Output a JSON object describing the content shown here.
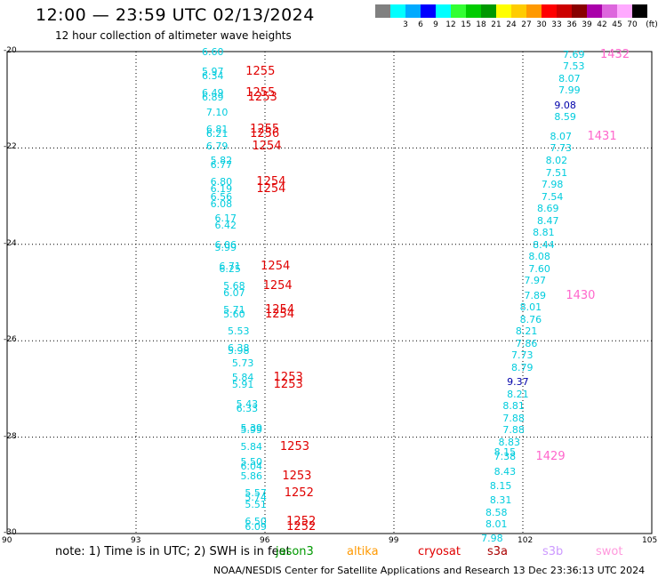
{
  "header": {
    "title": "12:00 — 23:59 UTC 02/13/2024",
    "subtitle": "12 hour collection of altimeter wave heights"
  },
  "color_scale": {
    "unit": "(ft)",
    "colors": [
      "#808080",
      "#00ffff",
      "#00aaff",
      "#0000ff",
      "#00ffff",
      "#33ff33",
      "#00cc00",
      "#009900",
      "#ffff00",
      "#ffcc00",
      "#ff9900",
      "#ff0000",
      "#cc0000",
      "#880000",
      "#aa00aa",
      "#dd66dd",
      "#ffaaff",
      "#000000"
    ],
    "labels": [
      "3",
      "6",
      "9",
      "12",
      "15",
      "18",
      "21",
      "24",
      "27",
      "30",
      "33",
      "36",
      "39",
      "42",
      "45",
      "70"
    ]
  },
  "axes": {
    "y_ticks": [
      "-20",
      "-22",
      "-24",
      "-26",
      "-28",
      "-30"
    ],
    "x_ticks": [
      "90",
      "93",
      "96",
      "99",
      "102",
      "105"
    ]
  },
  "track_left": [
    {
      "v": "6.60",
      "lat": -20.0,
      "lon": 94.8
    },
    {
      "v": "5.97",
      "lat": -20.4,
      "lon": 94.8
    },
    {
      "v": "6.34",
      "lat": -20.5,
      "lon": 94.8
    },
    {
      "v": "6.49",
      "lat": -20.85,
      "lon": 94.8
    },
    {
      "v": "6.89",
      "lat": -20.95,
      "lon": 94.8
    },
    {
      "v": "7.10",
      "lat": -21.25,
      "lon": 94.9
    },
    {
      "v": "6.81",
      "lat": -21.6,
      "lon": 94.9
    },
    {
      "v": "6.21",
      "lat": -21.7,
      "lon": 94.9
    },
    {
      "v": "6.79",
      "lat": -21.95,
      "lon": 94.9
    },
    {
      "v": "5.82",
      "lat": -22.25,
      "lon": 95.0
    },
    {
      "v": "6.77",
      "lat": -22.35,
      "lon": 95.0
    },
    {
      "v": "6.80",
      "lat": -22.7,
      "lon": 95.0
    },
    {
      "v": "6.19",
      "lat": -22.85,
      "lon": 95.0
    },
    {
      "v": "6.56",
      "lat": -23.0,
      "lon": 95.0
    },
    {
      "v": "6.08",
      "lat": -23.15,
      "lon": 95.0
    },
    {
      "v": "6.17",
      "lat": -23.45,
      "lon": 95.1
    },
    {
      "v": "6.42",
      "lat": -23.6,
      "lon": 95.1
    },
    {
      "v": "6.06",
      "lat": -24.0,
      "lon": 95.1
    },
    {
      "v": "5.99",
      "lat": -24.05,
      "lon": 95.1
    },
    {
      "v": "6.71",
      "lat": -24.45,
      "lon": 95.2
    },
    {
      "v": "6.25",
      "lat": -24.5,
      "lon": 95.2
    },
    {
      "v": "5.68",
      "lat": -24.85,
      "lon": 95.3
    },
    {
      "v": "6.07",
      "lat": -25.0,
      "lon": 95.3
    },
    {
      "v": "5.71",
      "lat": -25.35,
      "lon": 95.3
    },
    {
      "v": "5.60",
      "lat": -25.45,
      "lon": 95.3
    },
    {
      "v": "5.53",
      "lat": -25.8,
      "lon": 95.4
    },
    {
      "v": "6.38",
      "lat": -26.15,
      "lon": 95.4
    },
    {
      "v": "5.98",
      "lat": -26.2,
      "lon": 95.4
    },
    {
      "v": "5.73",
      "lat": -26.45,
      "lon": 95.5
    },
    {
      "v": "5.84",
      "lat": -26.75,
      "lon": 95.5
    },
    {
      "v": "5.91",
      "lat": -26.9,
      "lon": 95.5
    },
    {
      "v": "5.43",
      "lat": -27.3,
      "lon": 95.6
    },
    {
      "v": "6.33",
      "lat": -27.4,
      "lon": 95.6
    },
    {
      "v": "5.39",
      "lat": -27.8,
      "lon": 95.7
    },
    {
      "v": "5.99",
      "lat": -27.85,
      "lon": 95.7
    },
    {
      "v": "5.84",
      "lat": -28.2,
      "lon": 95.7
    },
    {
      "v": "5.50",
      "lat": -28.5,
      "lon": 95.7
    },
    {
      "v": "6.04",
      "lat": -28.6,
      "lon": 95.7
    },
    {
      "v": "5.86",
      "lat": -28.8,
      "lon": 95.7
    },
    {
      "v": "5.57",
      "lat": -29.15,
      "lon": 95.8
    },
    {
      "v": "5.74",
      "lat": -29.25,
      "lon": 95.8
    },
    {
      "v": "5.51",
      "lat": -29.4,
      "lon": 95.8
    },
    {
      "v": "6.50",
      "lat": -29.75,
      "lon": 95.8
    },
    {
      "v": "6.09",
      "lat": -29.85,
      "lon": 95.8
    }
  ],
  "track_right": [
    {
      "v": "7.69",
      "lat": -20.05,
      "lon": 103.2,
      "dark": false
    },
    {
      "v": "7.53",
      "lat": -20.3,
      "lon": 103.2,
      "dark": false
    },
    {
      "v": "8.07",
      "lat": -20.55,
      "lon": 103.1,
      "dark": false
    },
    {
      "v": "7.99",
      "lat": -20.8,
      "lon": 103.1,
      "dark": false
    },
    {
      "v": "9.08",
      "lat": -21.1,
      "lon": 103.0,
      "dark": true
    },
    {
      "v": "8.59",
      "lat": -21.35,
      "lon": 103.0,
      "dark": false
    },
    {
      "v": "8.07",
      "lat": -21.75,
      "lon": 102.9,
      "dark": false
    },
    {
      "v": "7.73",
      "lat": -22.0,
      "lon": 102.9,
      "dark": false
    },
    {
      "v": "8.02",
      "lat": -22.25,
      "lon": 102.8,
      "dark": false
    },
    {
      "v": "7.51",
      "lat": -22.5,
      "lon": 102.8,
      "dark": false
    },
    {
      "v": "7.98",
      "lat": -22.75,
      "lon": 102.7,
      "dark": false
    },
    {
      "v": "7.54",
      "lat": -23.0,
      "lon": 102.7,
      "dark": false
    },
    {
      "v": "8.69",
      "lat": -23.25,
      "lon": 102.6,
      "dark": false
    },
    {
      "v": "8.47",
      "lat": -23.5,
      "lon": 102.6,
      "dark": false
    },
    {
      "v": "8.81",
      "lat": -23.75,
      "lon": 102.5,
      "dark": false
    },
    {
      "v": "8.44",
      "lat": -24.0,
      "lon": 102.5,
      "dark": false
    },
    {
      "v": "8.08",
      "lat": -24.25,
      "lon": 102.4,
      "dark": false
    },
    {
      "v": "7.60",
      "lat": -24.5,
      "lon": 102.4,
      "dark": false
    },
    {
      "v": "7.97",
      "lat": -24.75,
      "lon": 102.3,
      "dark": false
    },
    {
      "v": "7.89",
      "lat": -25.05,
      "lon": 102.3,
      "dark": false
    },
    {
      "v": "8.01",
      "lat": -25.3,
      "lon": 102.2,
      "dark": false
    },
    {
      "v": "8.76",
      "lat": -25.55,
      "lon": 102.2,
      "dark": false
    },
    {
      "v": "8.21",
      "lat": -25.8,
      "lon": 102.1,
      "dark": false
    },
    {
      "v": "7.86",
      "lat": -26.05,
      "lon": 102.1,
      "dark": false
    },
    {
      "v": "7.73",
      "lat": -26.3,
      "lon": 102.0,
      "dark": false
    },
    {
      "v": "8.79",
      "lat": -26.55,
      "lon": 102.0,
      "dark": false
    },
    {
      "v": "9.37",
      "lat": -26.85,
      "lon": 101.9,
      "dark": true
    },
    {
      "v": "8.21",
      "lat": -27.1,
      "lon": 101.9,
      "dark": false
    },
    {
      "v": "8.81",
      "lat": -27.35,
      "lon": 101.8,
      "dark": false
    },
    {
      "v": "7.88",
      "lat": -27.6,
      "lon": 101.8,
      "dark": false
    },
    {
      "v": "7.88",
      "lat": -27.85,
      "lon": 101.8,
      "dark": false
    },
    {
      "v": "8.83",
      "lat": -28.1,
      "lon": 101.7,
      "dark": false
    },
    {
      "v": "8.15",
      "lat": -28.3,
      "lon": 101.6,
      "dark": false
    },
    {
      "v": "7.38",
      "lat": -28.4,
      "lon": 101.6,
      "dark": false
    },
    {
      "v": "8.43",
      "lat": -28.7,
      "lon": 101.6,
      "dark": false
    },
    {
      "v": "8.15",
      "lat": -29.0,
      "lon": 101.5,
      "dark": false
    },
    {
      "v": "8.31",
      "lat": -29.3,
      "lon": 101.5,
      "dark": false
    },
    {
      "v": "8.58",
      "lat": -29.55,
      "lon": 101.4,
      "dark": false
    },
    {
      "v": "8.01",
      "lat": -29.8,
      "lon": 101.4,
      "dark": false
    },
    {
      "v": "7.98",
      "lat": -30.1,
      "lon": 101.3,
      "dark": false
    }
  ],
  "pass_times_left": [
    {
      "t": "1255",
      "lat": -20.4,
      "lon": 95.55
    },
    {
      "t": "1255",
      "lat": -20.85,
      "lon": 95.55
    },
    {
      "t": "1253",
      "lat": -20.95,
      "lon": 95.6
    },
    {
      "t": "1255",
      "lat": -21.6,
      "lon": 95.65
    },
    {
      "t": "1256",
      "lat": -21.7,
      "lon": 95.65
    },
    {
      "t": "1254",
      "lat": -21.95,
      "lon": 95.7
    },
    {
      "t": "1254",
      "lat": -22.7,
      "lon": 95.8
    },
    {
      "t": "1254",
      "lat": -22.85,
      "lon": 95.8
    },
    {
      "t": "1254",
      "lat": -24.45,
      "lon": 95.9
    },
    {
      "t": "1254",
      "lat": -24.85,
      "lon": 95.95
    },
    {
      "t": "1254",
      "lat": -25.35,
      "lon": 96.0
    },
    {
      "t": "1254",
      "lat": -25.45,
      "lon": 96.0
    },
    {
      "t": "1253",
      "lat": -26.75,
      "lon": 96.2
    },
    {
      "t": "1253",
      "lat": -26.9,
      "lon": 96.2
    },
    {
      "t": "1253",
      "lat": -28.2,
      "lon": 96.35
    },
    {
      "t": "1253",
      "lat": -28.8,
      "lon": 96.4
    },
    {
      "t": "1252",
      "lat": -29.15,
      "lon": 96.45
    },
    {
      "t": "1252",
      "lat": -29.75,
      "lon": 96.5
    },
    {
      "t": "1252",
      "lat": -29.85,
      "lon": 96.5
    }
  ],
  "pass_times_right": [
    {
      "t": "1432",
      "lat": -20.05,
      "lon": 103.8
    },
    {
      "t": "1431",
      "lat": -21.75,
      "lon": 103.5
    },
    {
      "t": "1430",
      "lat": -25.05,
      "lon": 103.0
    },
    {
      "t": "1429",
      "lat": -28.4,
      "lon": 102.3
    }
  ],
  "footer": {
    "note": "note:  1) Time is in UTC; 2) SWH is in feet",
    "legend": [
      {
        "name": "jason3",
        "color": "#009900"
      },
      {
        "name": "altika",
        "color": "#ff9900"
      },
      {
        "name": "cryosat",
        "color": "#e00000"
      },
      {
        "name": "s3a",
        "color": "#aa0000"
      },
      {
        "name": "s3b",
        "color": "#cc99ff"
      },
      {
        "name": "swot",
        "color": "#ff99dd"
      }
    ],
    "credit": "NOAA/NESDIS Center for Satellite Applications and Research    13 Dec 23:36:13 UTC 2024"
  }
}
